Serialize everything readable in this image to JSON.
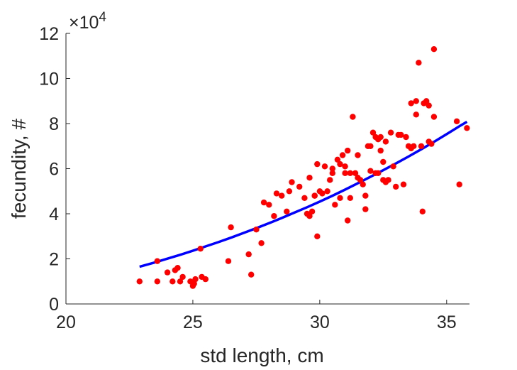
{
  "chart_data": {
    "type": "scatter",
    "xlabel": "std length, cm",
    "ylabel": "fecundity, #",
    "y_scale_label": {
      "prefix": "×10",
      "exponent": "4"
    },
    "xlim": [
      20,
      35.9
    ],
    "ylim": [
      0,
      12
    ],
    "x_ticks": [
      "20",
      "25",
      "30",
      "35"
    ],
    "y_ticks": [
      "0",
      "2",
      "4",
      "6",
      "8",
      "10",
      "12"
    ],
    "grid": false,
    "legend": "none",
    "colors": {
      "points": "#ff0000",
      "fit": "#0000ff",
      "axes": "#262626"
    },
    "series": [
      {
        "type": "scatter",
        "x": [
          22.9,
          23.6,
          23.6,
          24.0,
          24.2,
          24.3,
          24.4,
          24.5,
          24.6,
          24.9,
          25.0,
          25.05,
          25.1,
          25.3,
          25.35,
          25.5,
          26.4,
          26.5,
          27.2,
          27.3,
          27.5,
          27.7,
          27.8,
          28.0,
          28.2,
          28.3,
          28.5,
          28.7,
          28.8,
          28.9,
          29.2,
          29.4,
          29.5,
          29.6,
          29.6,
          29.7,
          29.8,
          29.8,
          29.9,
          29.9,
          30.0,
          30.1,
          30.2,
          30.3,
          30.4,
          30.5,
          30.5,
          30.6,
          30.7,
          30.8,
          30.8,
          30.9,
          31.0,
          31.0,
          31.1,
          31.1,
          31.2,
          31.2,
          31.3,
          31.4,
          31.5,
          31.5,
          31.6,
          31.7,
          31.8,
          31.8,
          31.9,
          32.0,
          32.0,
          32.1,
          32.2,
          32.2,
          32.3,
          32.3,
          32.4,
          32.4,
          32.5,
          32.5,
          32.6,
          32.6,
          32.7,
          32.8,
          32.9,
          33.0,
          33.1,
          33.2,
          33.3,
          33.4,
          33.5,
          33.6,
          33.6,
          33.7,
          33.8,
          33.8,
          33.9,
          34.0,
          34.05,
          34.1,
          34.2,
          34.3,
          34.3,
          34.4,
          34.5,
          34.5,
          35.4,
          35.5,
          35.8
        ],
        "y": [
          1.0,
          1.9,
          1.0,
          1.4,
          1.0,
          1.5,
          1.6,
          1.0,
          1.2,
          1.0,
          0.8,
          0.9,
          1.1,
          2.45,
          1.2,
          1.1,
          1.9,
          3.4,
          2.2,
          1.3,
          3.3,
          2.7,
          4.5,
          4.4,
          3.9,
          4.9,
          4.8,
          4.1,
          5.0,
          5.4,
          5.2,
          4.7,
          4.0,
          3.9,
          5.6,
          4.1,
          4.8,
          4.8,
          6.2,
          3.0,
          5.0,
          4.9,
          6.1,
          5.0,
          5.5,
          6.0,
          5.8,
          4.4,
          6.4,
          6.2,
          4.7,
          6.6,
          5.8,
          6.1,
          6.8,
          3.7,
          4.7,
          5.8,
          8.3,
          5.8,
          6.6,
          5.6,
          5.5,
          5.3,
          4.8,
          4.2,
          7.0,
          7.0,
          5.9,
          7.6,
          7.4,
          5.8,
          7.3,
          5.8,
          6.8,
          7.4,
          5.5,
          6.3,
          7.2,
          5.4,
          5.5,
          7.6,
          6.1,
          5.2,
          7.5,
          7.5,
          5.3,
          7.4,
          7.0,
          6.9,
          8.9,
          7.0,
          9.0,
          8.4,
          10.7,
          7.0,
          4.1,
          8.9,
          9.0,
          7.2,
          8.8,
          7.1,
          11.3,
          8.3,
          8.1,
          5.3,
          7.8
        ]
      },
      {
        "type": "line",
        "x": [
          22.9,
          23.5,
          24.0,
          24.5,
          25.0,
          25.5,
          26.0,
          26.5,
          27.0,
          27.5,
          28.0,
          28.5,
          29.0,
          29.5,
          30.0,
          30.5,
          31.0,
          31.5,
          32.0,
          32.5,
          33.0,
          33.5,
          34.0,
          34.5,
          35.0,
          35.5,
          35.8
        ],
        "y": [
          1.65,
          1.84,
          2.01,
          2.18,
          2.36,
          2.55,
          2.74,
          2.94,
          3.15,
          3.36,
          3.58,
          3.81,
          4.05,
          4.29,
          4.54,
          4.8,
          5.07,
          5.35,
          5.64,
          5.93,
          6.23,
          6.54,
          6.86,
          7.19,
          7.53,
          7.88,
          8.08
        ]
      }
    ]
  }
}
